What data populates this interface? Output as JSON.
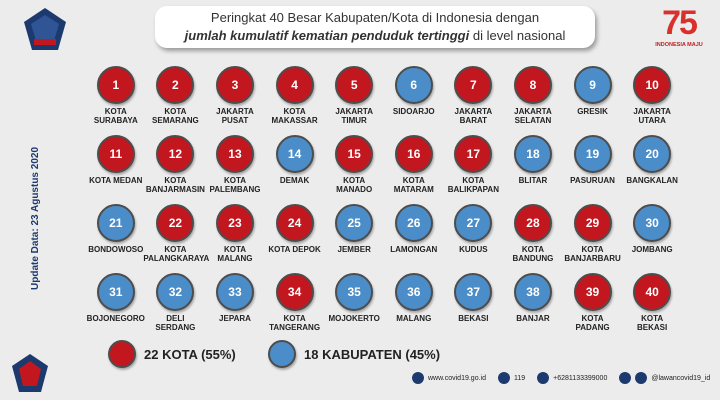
{
  "title": {
    "line1": "Peringkat 40 Besar Kabupaten/Kota di Indonesia dengan",
    "line2_bold": "jumlah kumulatif kematian penduduk tertinggi",
    "line2_rest": " di level nasional"
  },
  "badge_tr": {
    "number": "75",
    "caption": "INDONESIA MAJU"
  },
  "update_date": "Update Data: 23 Agustus 2020",
  "colors": {
    "kota": "#c2171e",
    "kabupaten": "#4b8dc9"
  },
  "items": [
    {
      "rank": "1",
      "name": "KOTA\nSURABAYA",
      "type": "kota"
    },
    {
      "rank": "2",
      "name": "KOTA\nSEMARANG",
      "type": "kota"
    },
    {
      "rank": "3",
      "name": "JAKARTA\nPUSAT",
      "type": "kota"
    },
    {
      "rank": "4",
      "name": "KOTA\nMAKASSAR",
      "type": "kota"
    },
    {
      "rank": "5",
      "name": "JAKARTA\nTIMUR",
      "type": "kota"
    },
    {
      "rank": "6",
      "name": "SIDOARJO",
      "type": "kab"
    },
    {
      "rank": "7",
      "name": "JAKARTA\nBARAT",
      "type": "kota"
    },
    {
      "rank": "8",
      "name": "JAKARTA\nSELATAN",
      "type": "kota"
    },
    {
      "rank": "9",
      "name": "GRESIK",
      "type": "kab"
    },
    {
      "rank": "10",
      "name": "JAKARTA\nUTARA",
      "type": "kota"
    },
    {
      "rank": "11",
      "name": "KOTA MEDAN",
      "type": "kota"
    },
    {
      "rank": "12",
      "name": "KOTA\nBANJARMASIN",
      "type": "kota"
    },
    {
      "rank": "13",
      "name": "KOTA\nPALEMBANG",
      "type": "kota"
    },
    {
      "rank": "14",
      "name": "DEMAK",
      "type": "kab"
    },
    {
      "rank": "15",
      "name": "KOTA\nMANADO",
      "type": "kota"
    },
    {
      "rank": "16",
      "name": "KOTA\nMATARAM",
      "type": "kota"
    },
    {
      "rank": "17",
      "name": "KOTA\nBALIKPAPAN",
      "type": "kota"
    },
    {
      "rank": "18",
      "name": "BLITAR",
      "type": "kab"
    },
    {
      "rank": "19",
      "name": "PASURUAN",
      "type": "kab"
    },
    {
      "rank": "20",
      "name": "BANGKALAN",
      "type": "kab"
    },
    {
      "rank": "21",
      "name": "BONDOWOSO",
      "type": "kab"
    },
    {
      "rank": "22",
      "name": "KOTA\nPALANGKARAYA",
      "type": "kota"
    },
    {
      "rank": "23",
      "name": "KOTA\nMALANG",
      "type": "kota"
    },
    {
      "rank": "24",
      "name": "KOTA DEPOK",
      "type": "kota"
    },
    {
      "rank": "25",
      "name": "JEMBER",
      "type": "kab"
    },
    {
      "rank": "26",
      "name": "LAMONGAN",
      "type": "kab"
    },
    {
      "rank": "27",
      "name": "KUDUS",
      "type": "kab"
    },
    {
      "rank": "28",
      "name": "KOTA\nBANDUNG",
      "type": "kota"
    },
    {
      "rank": "29",
      "name": "KOTA\nBANJARBARU",
      "type": "kota"
    },
    {
      "rank": "30",
      "name": "JOMBANG",
      "type": "kab"
    },
    {
      "rank": "31",
      "name": "BOJONEGORO",
      "type": "kab"
    },
    {
      "rank": "32",
      "name": "DELI\nSERDANG",
      "type": "kab"
    },
    {
      "rank": "33",
      "name": "JEPARA",
      "type": "kab"
    },
    {
      "rank": "34",
      "name": "KOTA\nTANGERANG",
      "type": "kota"
    },
    {
      "rank": "35",
      "name": "MOJOKERTO",
      "type": "kab"
    },
    {
      "rank": "36",
      "name": "MALANG",
      "type": "kab"
    },
    {
      "rank": "37",
      "name": "BEKASI",
      "type": "kab"
    },
    {
      "rank": "38",
      "name": "BANJAR",
      "type": "kab"
    },
    {
      "rank": "39",
      "name": "KOTA\nPADANG",
      "type": "kota"
    },
    {
      "rank": "40",
      "name": "KOTA\nBEKASI",
      "type": "kota"
    }
  ],
  "legend": {
    "kota": "22 KOTA (55%)",
    "kabupaten": "18 KABUPATEN (45%)"
  },
  "footer": {
    "website": "www.covid19.go.id",
    "hotline": "119",
    "whatsapp": "+6281133399000",
    "social": "@lawancovid19_id"
  }
}
